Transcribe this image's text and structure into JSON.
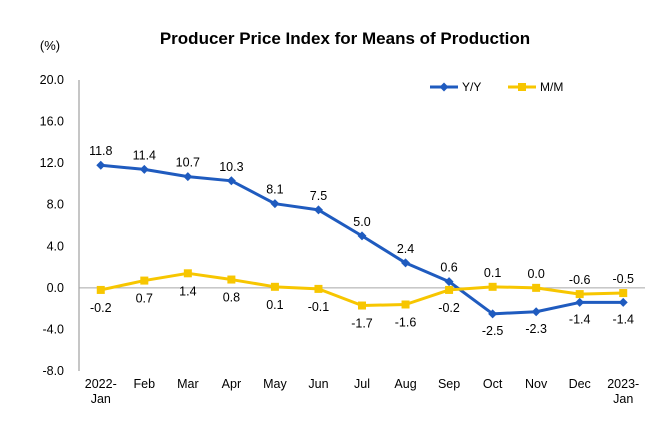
{
  "chart_data": {
    "type": "line",
    "title": "Producer Price Index for Means of Production",
    "ylabel": "(%)",
    "xlabel": "",
    "categories": [
      [
        "2022-",
        "Jan"
      ],
      [
        "Feb"
      ],
      [
        "Mar"
      ],
      [
        "Apr"
      ],
      [
        "May"
      ],
      [
        "Jun"
      ],
      [
        "Jul"
      ],
      [
        "Aug"
      ],
      [
        "Sep"
      ],
      [
        "Oct"
      ],
      [
        "Nov"
      ],
      [
        "Dec"
      ],
      [
        "2023-",
        "Jan"
      ]
    ],
    "ylim": [
      -8.0,
      20.0
    ],
    "yticks": [
      "20.0",
      "16.0",
      "12.0",
      "8.0",
      "4.0",
      "0.0",
      "-4.0",
      "-8.0"
    ],
    "ytick_values": [
      20,
      16,
      12,
      8,
      4,
      0,
      -4,
      -8
    ],
    "grid": false,
    "legend_position": "top-right",
    "series": [
      {
        "name": "Y/Y",
        "color": "#1f5bbf",
        "marker": "diamond",
        "values": [
          11.8,
          11.4,
          10.7,
          10.3,
          8.1,
          7.5,
          5.0,
          2.4,
          0.6,
          -2.5,
          -2.3,
          -1.4,
          -1.4
        ],
        "labels": [
          "11.8",
          "11.4",
          "10.7",
          "10.3",
          "8.1",
          "7.5",
          "5.0",
          "2.4",
          "0.6",
          "-2.5",
          "-2.3",
          "-1.4",
          "-1.4"
        ]
      },
      {
        "name": "M/M",
        "color": "#f7c600",
        "marker": "square",
        "values": [
          -0.2,
          0.7,
          1.4,
          0.8,
          0.1,
          -0.1,
          -1.7,
          -1.6,
          -0.2,
          0.1,
          0.0,
          -0.6,
          -0.5
        ],
        "labels": [
          "-0.2",
          "0.7",
          "1.4",
          "0.8",
          "0.1",
          "-0.1",
          "-1.7",
          "-1.6",
          "-0.2",
          "0.1",
          "0.0",
          "-0.6",
          "-0.5"
        ]
      }
    ]
  }
}
